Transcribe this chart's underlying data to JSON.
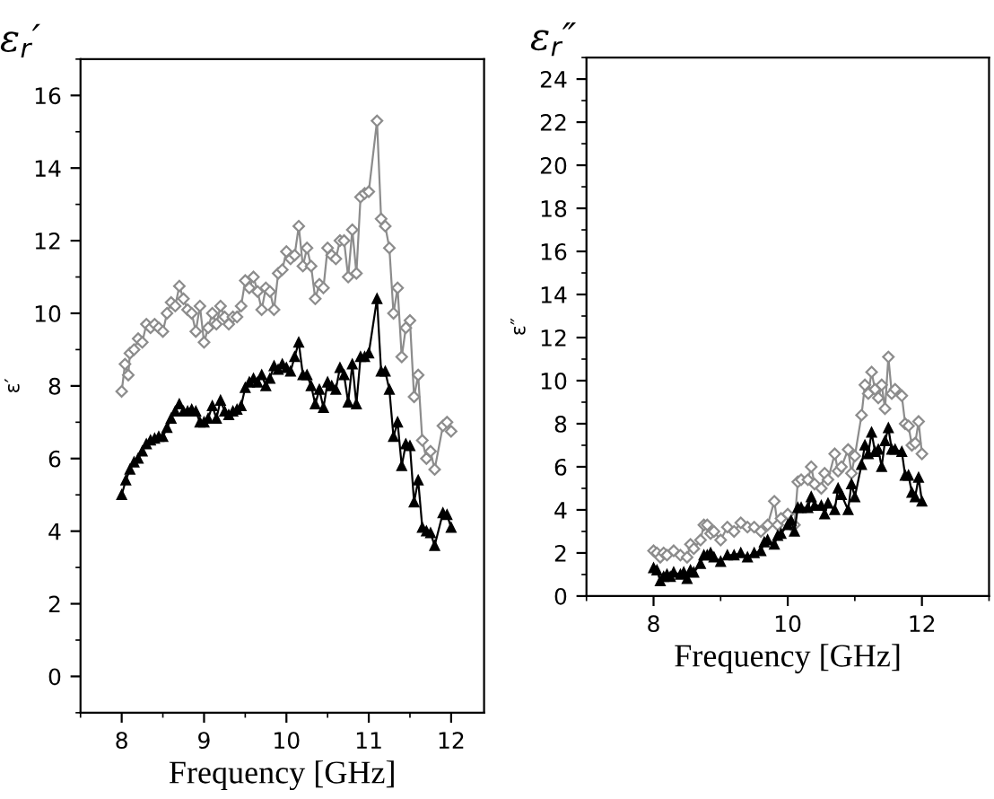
{
  "chart_data": [
    {
      "type": "line",
      "title": "ε$_{r}$′",
      "xlabel": "Frequency [GHz]",
      "ylabel": "ε′",
      "xlim": [
        7.5,
        12.4
      ],
      "xticks": [
        8,
        9,
        10,
        11,
        12
      ],
      "ylim": [
        -1,
        17
      ],
      "yticks": [
        0,
        2,
        4,
        6,
        8,
        10,
        12,
        14,
        16
      ],
      "grid": false,
      "legend": false,
      "series": [
        {
          "color": "#8c8c8c",
          "marker": "diamond",
          "x": [
            8.0,
            8.04,
            8.08,
            8.1,
            8.15,
            8.2,
            8.25,
            8.3,
            8.35,
            8.4,
            8.45,
            8.5,
            8.55,
            8.6,
            8.65,
            8.7,
            8.75,
            8.8,
            8.85,
            8.9,
            8.95,
            9.0,
            9.05,
            9.1,
            9.15,
            9.2,
            9.25,
            9.3,
            9.35,
            9.4,
            9.45,
            9.5,
            9.55,
            9.6,
            9.65,
            9.7,
            9.75,
            9.8,
            9.85,
            9.9,
            9.95,
            10.0,
            10.05,
            10.1,
            10.15,
            10.2,
            10.25,
            10.3,
            10.35,
            10.4,
            10.45,
            10.5,
            10.55,
            10.6,
            10.65,
            10.7,
            10.75,
            10.8,
            10.85,
            10.9,
            10.95,
            11.0,
            11.1,
            11.15,
            11.2,
            11.25,
            11.3,
            11.35,
            11.4,
            11.45,
            11.5,
            11.55,
            11.6,
            11.65,
            11.7,
            11.75,
            11.8,
            11.9,
            11.95,
            12.0
          ],
          "values": [
            7.85,
            8.6,
            8.3,
            8.9,
            9.0,
            9.3,
            9.2,
            9.7,
            9.6,
            9.7,
            9.6,
            9.5,
            10.0,
            10.3,
            10.2,
            10.75,
            10.4,
            10.1,
            10.0,
            9.5,
            10.2,
            9.2,
            9.6,
            10.0,
            9.7,
            10.2,
            9.9,
            9.7,
            9.9,
            9.9,
            10.2,
            10.9,
            10.7,
            11.0,
            10.6,
            10.1,
            10.7,
            10.6,
            10.1,
            11.1,
            11.2,
            11.7,
            11.5,
            11.6,
            12.4,
            11.3,
            11.8,
            11.3,
            10.4,
            10.8,
            10.7,
            11.8,
            11.6,
            11.5,
            12.0,
            12.0,
            11.0,
            12.3,
            11.1,
            13.2,
            13.3,
            13.35,
            15.3,
            12.6,
            12.4,
            11.8,
            10.0,
            10.7,
            8.8,
            9.6,
            9.8,
            7.7,
            8.3,
            6.5,
            6.0,
            6.2,
            5.7,
            6.9,
            7.0,
            6.75
          ]
        },
        {
          "color": "#000000",
          "marker": "triangle",
          "x": [
            8.0,
            8.05,
            8.1,
            8.15,
            8.2,
            8.25,
            8.3,
            8.35,
            8.4,
            8.45,
            8.5,
            8.55,
            8.6,
            8.65,
            8.7,
            8.75,
            8.8,
            8.85,
            8.9,
            8.95,
            9.0,
            9.05,
            9.1,
            9.15,
            9.2,
            9.25,
            9.3,
            9.35,
            9.4,
            9.45,
            9.5,
            9.55,
            9.6,
            9.65,
            9.7,
            9.75,
            9.8,
            9.85,
            9.9,
            9.95,
            10.0,
            10.05,
            10.1,
            10.15,
            10.2,
            10.25,
            10.3,
            10.35,
            10.4,
            10.45,
            10.5,
            10.55,
            10.6,
            10.65,
            10.7,
            10.75,
            10.8,
            10.85,
            10.9,
            10.95,
            11.0,
            11.1,
            11.15,
            11.2,
            11.25,
            11.3,
            11.35,
            11.4,
            11.45,
            11.5,
            11.55,
            11.6,
            11.65,
            11.7,
            11.75,
            11.8,
            11.9,
            11.95,
            12.0
          ],
          "values": [
            5.0,
            5.4,
            5.7,
            5.9,
            6.0,
            6.2,
            6.4,
            6.5,
            6.55,
            6.6,
            6.6,
            6.85,
            7.1,
            7.3,
            7.5,
            7.3,
            7.3,
            7.35,
            7.3,
            7.0,
            7.0,
            7.1,
            7.45,
            7.1,
            7.6,
            7.3,
            7.2,
            7.3,
            7.35,
            7.45,
            7.95,
            8.1,
            8.2,
            8.1,
            8.3,
            8.0,
            8.2,
            8.55,
            8.45,
            8.6,
            8.5,
            8.4,
            8.8,
            9.2,
            8.3,
            8.3,
            8.0,
            7.5,
            7.9,
            7.4,
            8.1,
            8.0,
            7.9,
            8.5,
            8.3,
            7.55,
            8.6,
            7.5,
            8.8,
            8.8,
            8.9,
            10.4,
            8.4,
            8.4,
            7.9,
            6.6,
            7.0,
            5.8,
            6.4,
            6.35,
            4.8,
            5.4,
            4.1,
            4.0,
            3.95,
            3.6,
            4.5,
            4.45,
            4.1
          ]
        }
      ]
    },
    {
      "type": "line",
      "title": "ε$_{r}$″",
      "xlabel": "Frequency [GHz]",
      "ylabel": "ε″",
      "xlim": [
        7,
        13
      ],
      "xticks": [
        8,
        10,
        12
      ],
      "ylim": [
        0,
        25
      ],
      "yticks": [
        0,
        2,
        4,
        6,
        8,
        10,
        12,
        14,
        16,
        18,
        20,
        22,
        24
      ],
      "grid": false,
      "legend": false,
      "series": [
        {
          "color": "#8c8c8c",
          "marker": "diamond",
          "x": [
            8.0,
            8.05,
            8.1,
            8.15,
            8.2,
            8.3,
            8.4,
            8.5,
            8.55,
            8.6,
            8.7,
            8.75,
            8.8,
            8.85,
            8.9,
            9.0,
            9.1,
            9.2,
            9.3,
            9.4,
            9.5,
            9.6,
            9.7,
            9.8,
            9.85,
            9.9,
            10.0,
            10.05,
            10.1,
            10.15,
            10.2,
            10.3,
            10.35,
            10.4,
            10.5,
            10.55,
            10.6,
            10.7,
            10.75,
            10.8,
            10.9,
            10.95,
            11.0,
            11.1,
            11.15,
            11.2,
            11.25,
            11.3,
            11.35,
            11.4,
            11.45,
            11.5,
            11.55,
            11.6,
            11.7,
            11.75,
            11.8,
            11.85,
            11.9,
            11.95,
            12.0
          ],
          "values": [
            2.1,
            2.0,
            1.8,
            2.0,
            1.9,
            2.1,
            1.9,
            1.8,
            2.4,
            2.2,
            2.6,
            3.3,
            3.3,
            2.9,
            3.0,
            2.6,
            3.2,
            3.0,
            3.4,
            3.2,
            3.2,
            3.0,
            3.3,
            4.4,
            3.3,
            3.6,
            3.8,
            3.3,
            3.3,
            5.3,
            5.4,
            5.4,
            6.0,
            5.2,
            5.0,
            5.7,
            5.4,
            6.6,
            5.8,
            6.0,
            6.8,
            5.7,
            6.5,
            8.4,
            9.8,
            9.4,
            10.4,
            9.6,
            9.2,
            9.8,
            8.7,
            11.1,
            9.4,
            9.6,
            9.3,
            8.0,
            7.9,
            7.0,
            7.1,
            8.1,
            6.6
          ]
        },
        {
          "color": "#000000",
          "marker": "triangle",
          "x": [
            8.0,
            8.05,
            8.1,
            8.15,
            8.2,
            8.25,
            8.3,
            8.4,
            8.45,
            8.5,
            8.55,
            8.6,
            8.7,
            8.75,
            8.8,
            8.85,
            8.9,
            9.0,
            9.1,
            9.2,
            9.3,
            9.4,
            9.5,
            9.6,
            9.65,
            9.7,
            9.8,
            9.85,
            9.9,
            10.0,
            10.05,
            10.1,
            10.15,
            10.2,
            10.3,
            10.35,
            10.4,
            10.5,
            10.55,
            10.6,
            10.7,
            10.75,
            10.8,
            10.9,
            10.95,
            11.0,
            11.1,
            11.15,
            11.2,
            11.25,
            11.3,
            11.35,
            11.4,
            11.45,
            11.5,
            11.55,
            11.6,
            11.7,
            11.75,
            11.8,
            11.85,
            11.9,
            11.95,
            12.0
          ],
          "values": [
            1.3,
            1.2,
            0.7,
            0.9,
            1.0,
            0.9,
            1.1,
            1.0,
            1.1,
            0.8,
            1.2,
            1.1,
            1.5,
            1.9,
            1.9,
            2.0,
            1.8,
            1.6,
            1.9,
            1.9,
            2.0,
            1.8,
            2.0,
            2.1,
            2.5,
            2.6,
            2.4,
            2.8,
            2.9,
            3.3,
            3.5,
            3.0,
            4.1,
            4.1,
            4.1,
            4.6,
            4.2,
            4.2,
            3.8,
            4.3,
            4.0,
            5.0,
            4.7,
            4.0,
            5.2,
            4.6,
            6.1,
            7.0,
            6.6,
            7.6,
            6.7,
            6.8,
            6.0,
            7.2,
            7.8,
            6.8,
            6.8,
            6.7,
            5.6,
            5.6,
            4.8,
            4.6,
            5.5,
            4.4
          ]
        }
      ]
    }
  ]
}
